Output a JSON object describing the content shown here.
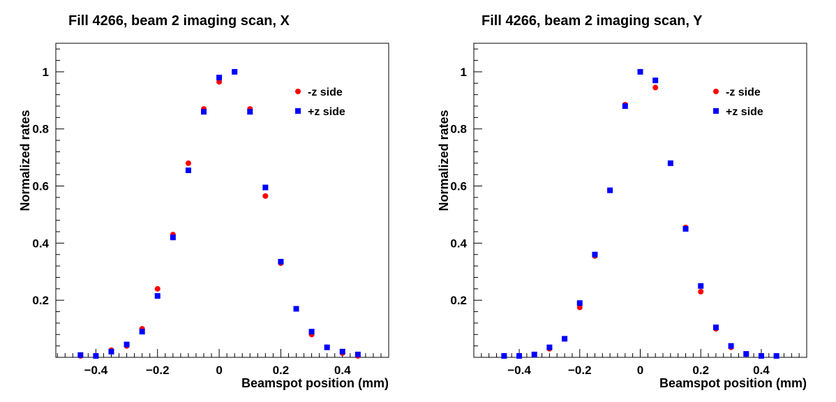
{
  "chart_data": [
    {
      "type": "scatter",
      "title": "Fill 4266, beam 2 imaging scan, X",
      "xlabel": "Beamspot position (mm)",
      "ylabel": "Normalized rates",
      "xlim": [
        -0.53,
        0.55
      ],
      "ylim": [
        0,
        1.1
      ],
      "xticks": [
        -0.4,
        -0.2,
        0,
        0.2,
        0.4
      ],
      "xtick_labels": [
        "−0.4",
        "−0.2",
        "0",
        "0.2",
        "0.4"
      ],
      "yticks": [
        0.2,
        0.4,
        0.6,
        0.8,
        1.0
      ],
      "ytick_labels": [
        "0.2",
        "0.4",
        "0.6",
        "0.8",
        "1"
      ],
      "legend_position": "top-right",
      "series": [
        {
          "name": "-z side",
          "color": "#ff0000",
          "marker": "circle",
          "points": [
            [
              -0.45,
              0.005
            ],
            [
              -0.4,
              0.005
            ],
            [
              -0.35,
              0.025
            ],
            [
              -0.3,
              0.04
            ],
            [
              -0.25,
              0.1
            ],
            [
              -0.2,
              0.24
            ],
            [
              -0.15,
              0.43
            ],
            [
              -0.1,
              0.68
            ],
            [
              -0.05,
              0.87
            ],
            [
              0.0,
              0.965
            ],
            [
              0.05,
              1.0
            ],
            [
              0.1,
              0.87
            ],
            [
              0.15,
              0.565
            ],
            [
              0.2,
              0.33
            ],
            [
              0.25,
              0.17
            ],
            [
              0.3,
              0.08
            ],
            [
              0.35,
              0.035
            ],
            [
              0.4,
              0.015
            ],
            [
              0.45,
              0.005
            ]
          ]
        },
        {
          "name": "+z side",
          "color": "#0000ff",
          "marker": "square",
          "points": [
            [
              -0.45,
              0.008
            ],
            [
              -0.4,
              0.005
            ],
            [
              -0.35,
              0.02
            ],
            [
              -0.3,
              0.045
            ],
            [
              -0.25,
              0.09
            ],
            [
              -0.2,
              0.215
            ],
            [
              -0.15,
              0.42
            ],
            [
              -0.1,
              0.655
            ],
            [
              -0.05,
              0.86
            ],
            [
              0.0,
              0.98
            ],
            [
              0.05,
              1.0
            ],
            [
              0.1,
              0.86
            ],
            [
              0.15,
              0.595
            ],
            [
              0.2,
              0.335
            ],
            [
              0.25,
              0.17
            ],
            [
              0.3,
              0.09
            ],
            [
              0.35,
              0.035
            ],
            [
              0.4,
              0.02
            ],
            [
              0.45,
              0.01
            ]
          ]
        }
      ]
    },
    {
      "type": "scatter",
      "title": "Fill 4266, beam 2 imaging scan, Y",
      "xlabel": "Beamspot position (mm)",
      "ylabel": "Normalized rates",
      "xlim": [
        -0.55,
        0.55
      ],
      "ylim": [
        0,
        1.1
      ],
      "xticks": [
        -0.4,
        -0.2,
        0,
        0.2,
        0.4
      ],
      "xtick_labels": [
        "−0.4",
        "−0.2",
        "0",
        "0.2",
        "0.4"
      ],
      "yticks": [
        0.2,
        0.4,
        0.6,
        0.8,
        1.0
      ],
      "ytick_labels": [
        "0.2",
        "0.4",
        "0.6",
        "0.8",
        "1"
      ],
      "legend_position": "top-right",
      "series": [
        {
          "name": "-z side",
          "color": "#ff0000",
          "marker": "circle",
          "points": [
            [
              -0.45,
              0.005
            ],
            [
              -0.4,
              0.005
            ],
            [
              -0.35,
              0.01
            ],
            [
              -0.3,
              0.03
            ],
            [
              -0.25,
              0.065
            ],
            [
              -0.2,
              0.175
            ],
            [
              -0.15,
              0.355
            ],
            [
              -0.1,
              0.585
            ],
            [
              -0.05,
              0.885
            ],
            [
              0.0,
              1.0
            ],
            [
              0.05,
              0.945
            ],
            [
              0.1,
              0.68
            ],
            [
              0.15,
              0.455
            ],
            [
              0.2,
              0.23
            ],
            [
              0.25,
              0.1
            ],
            [
              0.3,
              0.035
            ],
            [
              0.35,
              0.012
            ],
            [
              0.4,
              0.005
            ],
            [
              0.45,
              0.005
            ]
          ]
        },
        {
          "name": "+z side",
          "color": "#0000ff",
          "marker": "square",
          "points": [
            [
              -0.45,
              0.005
            ],
            [
              -0.4,
              0.005
            ],
            [
              -0.35,
              0.01
            ],
            [
              -0.3,
              0.035
            ],
            [
              -0.25,
              0.065
            ],
            [
              -0.2,
              0.19
            ],
            [
              -0.15,
              0.36
            ],
            [
              -0.1,
              0.585
            ],
            [
              -0.05,
              0.88
            ],
            [
              0.0,
              1.0
            ],
            [
              0.05,
              0.97
            ],
            [
              0.1,
              0.68
            ],
            [
              0.15,
              0.45
            ],
            [
              0.2,
              0.25
            ],
            [
              0.25,
              0.105
            ],
            [
              0.3,
              0.04
            ],
            [
              0.35,
              0.012
            ],
            [
              0.4,
              0.005
            ],
            [
              0.45,
              0.005
            ]
          ]
        }
      ]
    }
  ]
}
